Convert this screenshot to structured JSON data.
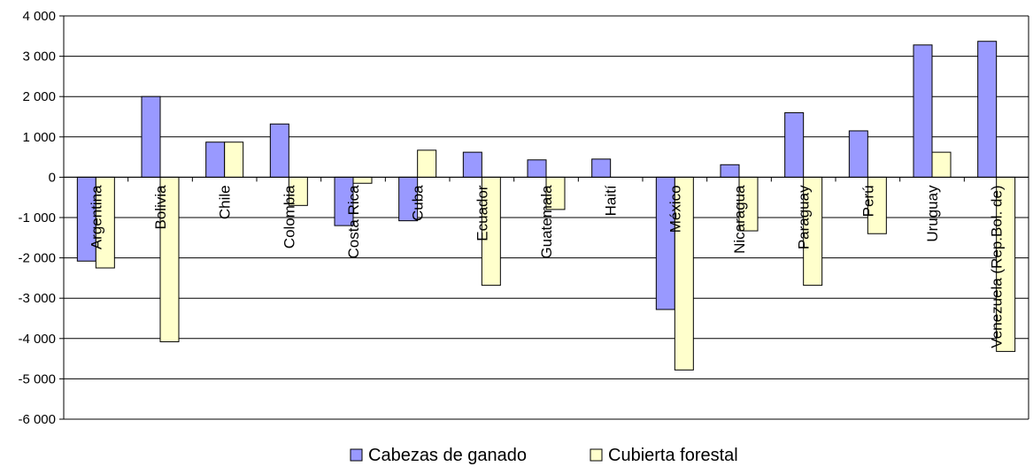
{
  "chart_data": {
    "type": "bar",
    "title": "",
    "xlabel": "",
    "ylabel": "",
    "ylim": [
      -6000,
      4000
    ],
    "yticks": [
      4000,
      3000,
      2000,
      1000,
      0,
      -1000,
      -2000,
      -3000,
      -4000,
      -5000,
      -6000
    ],
    "ytick_labels": [
      "4 000",
      "3 000",
      "2 000",
      "1 000",
      "0",
      "-1 000",
      "-2 000",
      "-3 000",
      "-4 000",
      "-5 000",
      "-6 000"
    ],
    "grid": true,
    "legend_position": "bottom",
    "categories": [
      "Argentina",
      "Bolivia",
      "Chile",
      "Colombia",
      "Costa Rica",
      "Cuba",
      "Ecuador",
      "Guatemala",
      "Haití",
      "México",
      "Nicaragua",
      "Paraguay",
      "Perú",
      "Uruguay",
      "Venezuela (Rep.Bol. de)"
    ],
    "series": [
      {
        "name": "Cabezas de ganado",
        "color": "#9999ff",
        "values": [
          -2080,
          2000,
          870,
          1320,
          -1200,
          -1080,
          620,
          430,
          450,
          -3280,
          310,
          1600,
          1150,
          3280,
          3370
        ]
      },
      {
        "name": "Cubierta forestal",
        "color": "#ffffcc",
        "values": [
          -2250,
          -4080,
          870,
          -700,
          -150,
          670,
          -2680,
          -800,
          0,
          -4780,
          -1330,
          -2680,
          -1400,
          620,
          -4320
        ]
      }
    ]
  }
}
